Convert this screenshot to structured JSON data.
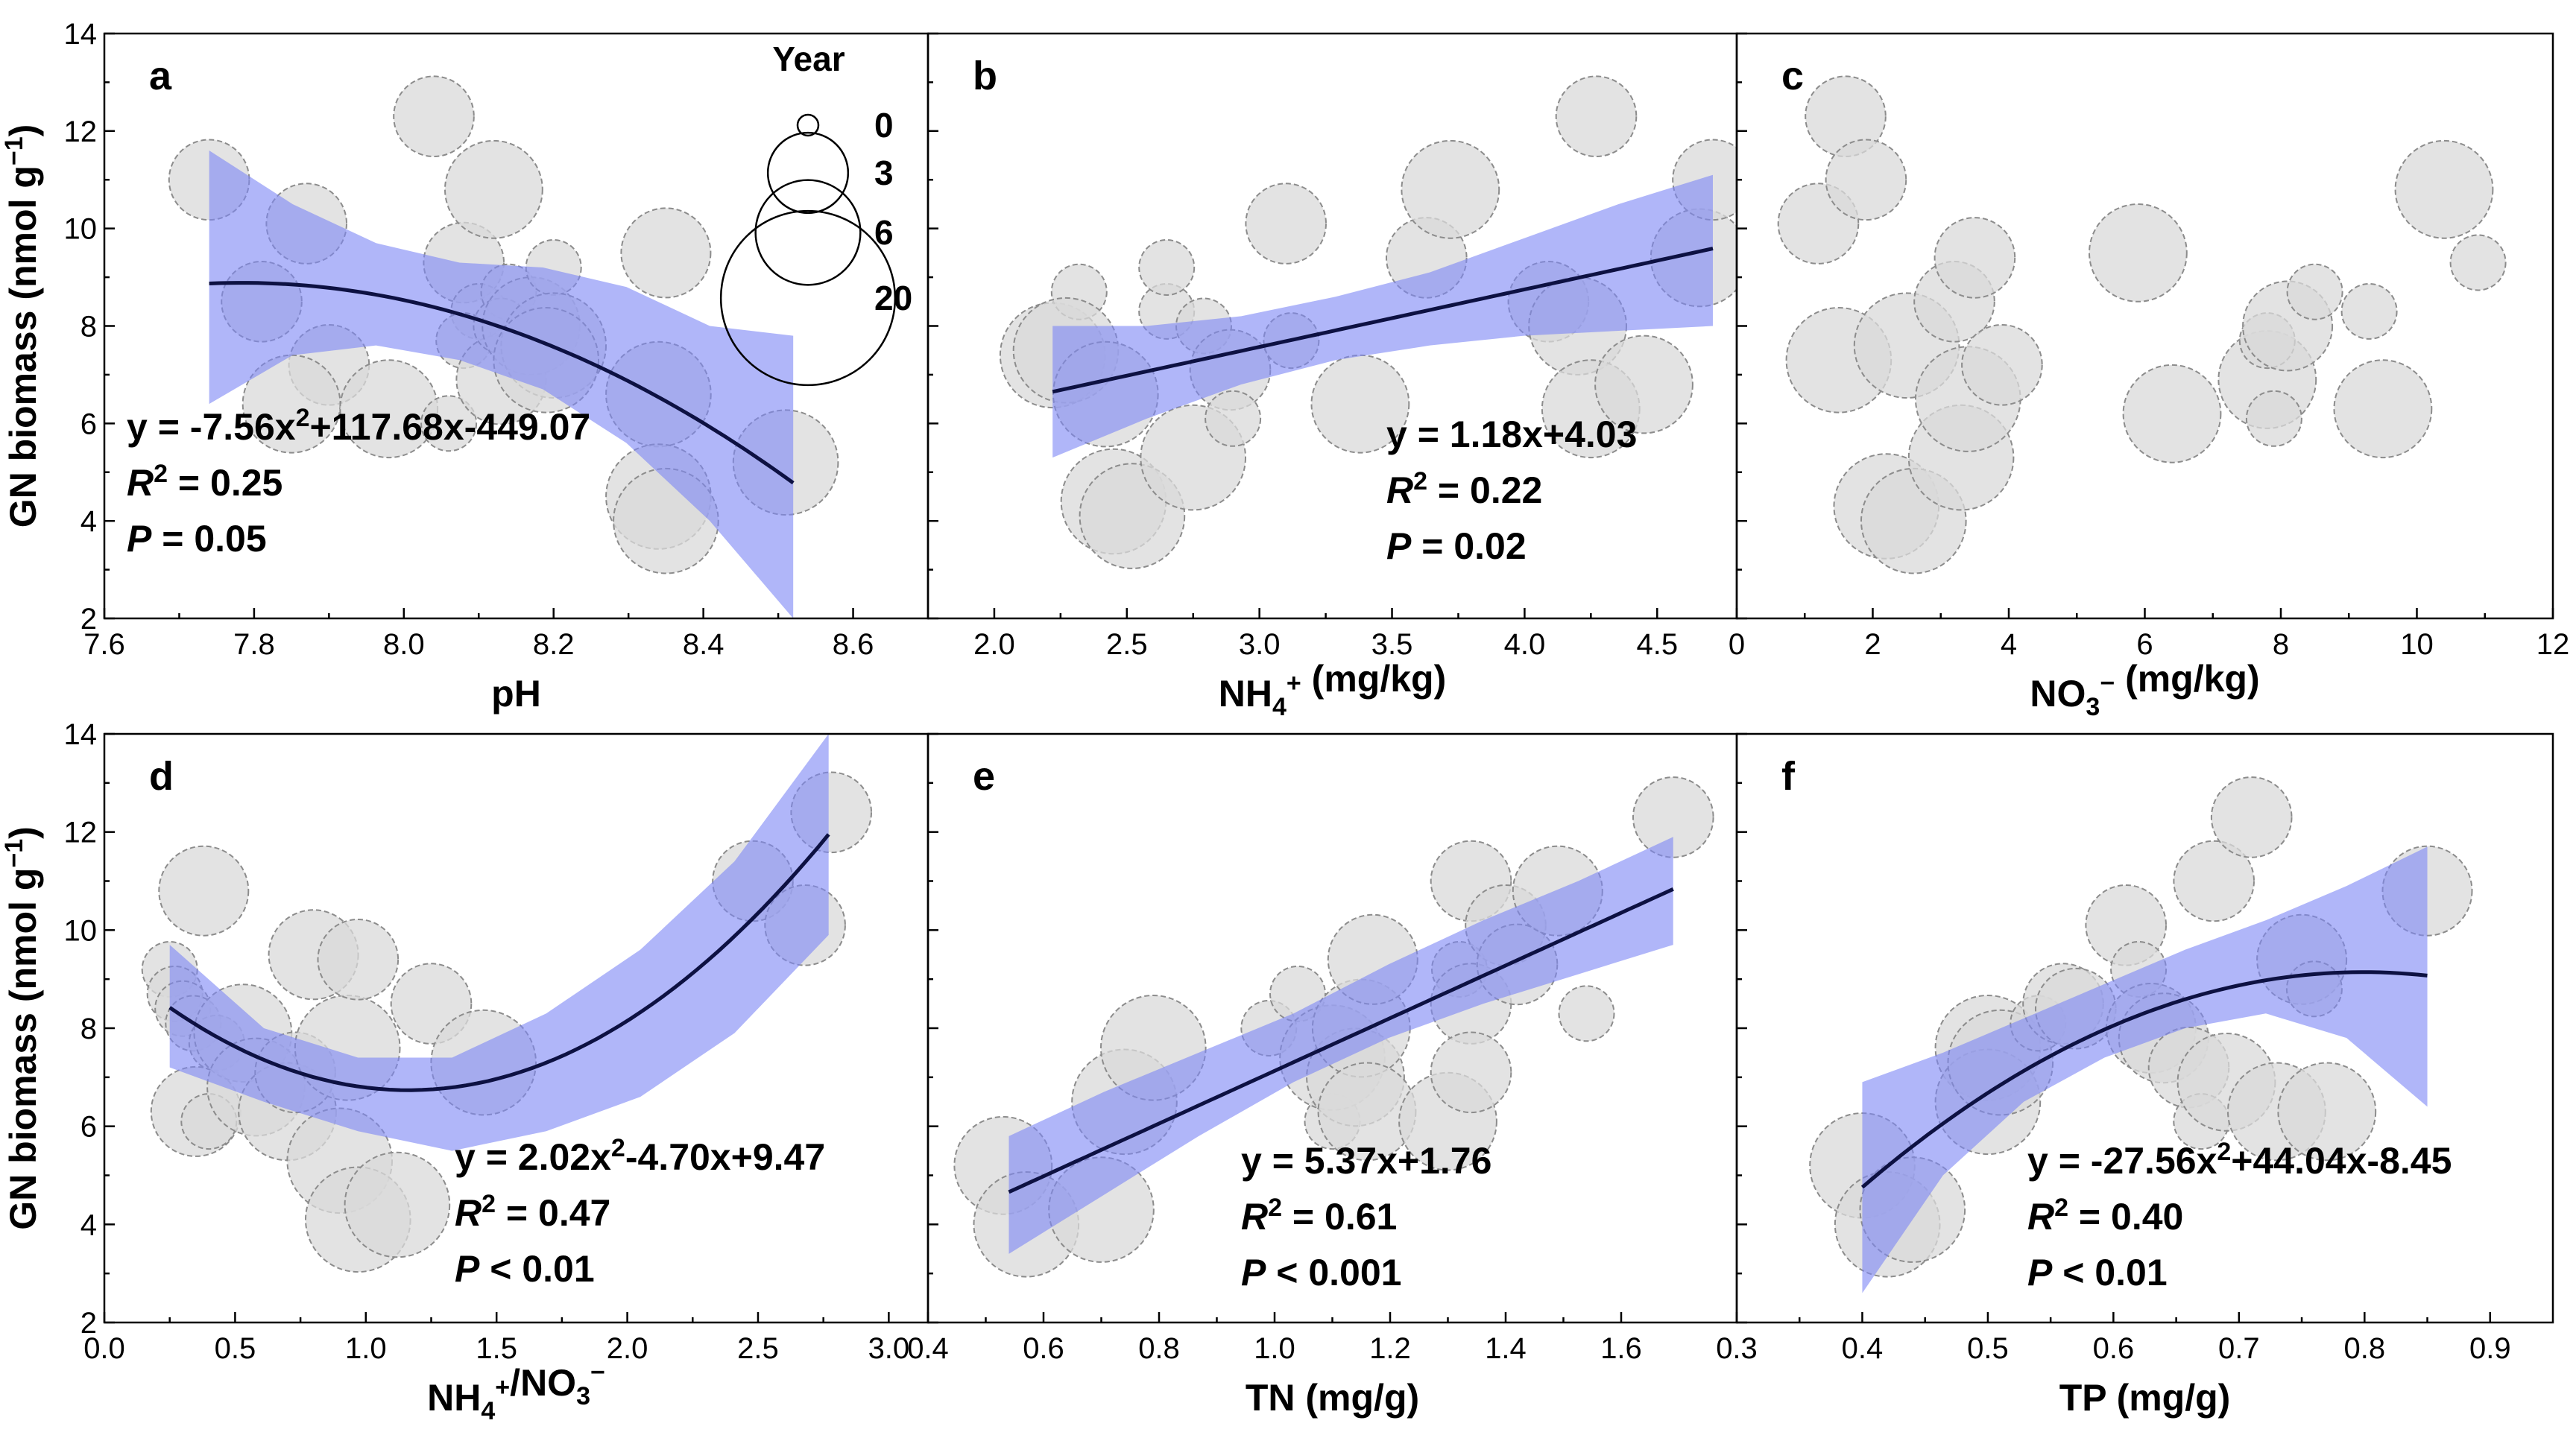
{
  "chart_data": [
    {
      "panel": "a",
      "type": "scatter",
      "xlabel": "pH",
      "ylabel": "GN biomass (nmol g⁻¹)",
      "xlim": [
        7.6,
        8.7
      ],
      "ylim": [
        2,
        14
      ],
      "xticks": [
        "7.6",
        "7.8",
        "8.0",
        "8.2",
        "8.4",
        "8.6"
      ],
      "yticks": [
        "2",
        "4",
        "6",
        "8",
        "10",
        "12",
        "14"
      ],
      "legend": {
        "title": "Year",
        "labels": [
          "0",
          "3",
          "6",
          "20"
        ],
        "sizes": [
          0,
          3,
          6,
          20
        ]
      },
      "fit": {
        "kind": "quadratic",
        "coef": [
          -7.56,
          117.68,
          -449.07
        ],
        "xrange": [
          7.74,
          8.52
        ],
        "ci_low": [
          6.4,
          7.4,
          7.6,
          7.3,
          6.7,
          5.6,
          4.0,
          2.0
        ],
        "ci_high": [
          11.6,
          10.5,
          9.7,
          9.3,
          9.2,
          8.8,
          8.0,
          7.8
        ]
      },
      "equation": "y = -7.56x²+117.68x-449.07",
      "r2": "0.25",
      "p": "P = 0.05",
      "points": [
        [
          7.74,
          11.0,
          3
        ],
        [
          7.81,
          8.5,
          3
        ],
        [
          7.87,
          10.1,
          3
        ],
        [
          7.9,
          7.2,
          3
        ],
        [
          7.85,
          6.4,
          5
        ],
        [
          7.98,
          6.3,
          5
        ],
        [
          8.04,
          12.3,
          3
        ],
        [
          8.08,
          9.3,
          3
        ],
        [
          8.06,
          6.0,
          1
        ],
        [
          8.1,
          8.3,
          1
        ],
        [
          8.08,
          7.7,
          1
        ],
        [
          8.12,
          10.8,
          5
        ],
        [
          8.13,
          6.9,
          4
        ],
        [
          8.14,
          8.7,
          1
        ],
        [
          8.13,
          8.0,
          1
        ],
        [
          8.17,
          8.0,
          5
        ],
        [
          8.2,
          9.2,
          1
        ],
        [
          8.2,
          7.6,
          6
        ],
        [
          8.19,
          7.3,
          6
        ],
        [
          8.35,
          9.5,
          4
        ],
        [
          8.34,
          6.6,
          6
        ],
        [
          8.34,
          4.5,
          6
        ],
        [
          8.35,
          4.0,
          6
        ],
        [
          8.51,
          5.2,
          6
        ]
      ]
    },
    {
      "panel": "b",
      "type": "scatter",
      "xlabel": "NH4+ (mg/kg)",
      "xlim": [
        1.75,
        4.8
      ],
      "ylim": [
        2,
        14
      ],
      "xticks": [
        "2.0",
        "2.5",
        "3.0",
        "3.5",
        "4.0",
        "4.5"
      ],
      "fit": {
        "kind": "linear",
        "coef": [
          1.18,
          4.03
        ],
        "xrange": [
          2.22,
          4.71
        ],
        "ci_low": [
          5.3,
          6.1,
          6.8,
          7.3,
          7.6,
          7.8,
          7.9,
          8.0
        ],
        "ci_high": [
          8.0,
          8.0,
          8.2,
          8.6,
          9.1,
          9.8,
          10.5,
          11.1
        ]
      },
      "equation": "y = 1.18x+4.03",
      "r2": "0.22",
      "p": "P = 0.02",
      "points": [
        [
          2.22,
          7.4,
          6
        ],
        [
          2.32,
          8.7,
          1
        ],
        [
          2.27,
          7.5,
          6
        ],
        [
          2.42,
          6.6,
          6
        ],
        [
          2.45,
          4.4,
          6
        ],
        [
          2.52,
          4.1,
          6
        ],
        [
          2.65,
          8.3,
          1
        ],
        [
          2.65,
          9.2,
          1
        ],
        [
          2.75,
          5.3,
          6
        ],
        [
          2.79,
          8.0,
          1
        ],
        [
          2.89,
          7.1,
          3
        ],
        [
          2.9,
          6.1,
          1
        ],
        [
          3.1,
          10.1,
          3
        ],
        [
          3.12,
          7.7,
          1
        ],
        [
          3.38,
          6.4,
          5
        ],
        [
          3.63,
          9.4,
          3
        ],
        [
          3.72,
          10.8,
          5
        ],
        [
          4.09,
          8.5,
          3
        ],
        [
          4.2,
          8.0,
          5
        ],
        [
          4.25,
          6.3,
          5
        ],
        [
          4.27,
          12.3,
          3
        ],
        [
          4.45,
          6.8,
          5
        ],
        [
          4.66,
          9.4,
          5
        ],
        [
          4.71,
          11.0,
          3
        ]
      ]
    },
    {
      "panel": "c",
      "type": "scatter",
      "xlabel": "NO3− (mg/kg)",
      "xlim": [
        0,
        12
      ],
      "ylim": [
        2,
        14
      ],
      "xticks": [
        "0",
        "2",
        "4",
        "6",
        "8",
        "10",
        "12"
      ],
      "points": [
        [
          1.2,
          10.1,
          3
        ],
        [
          1.6,
          12.3,
          3
        ],
        [
          1.9,
          11.0,
          3
        ],
        [
          1.5,
          7.3,
          6
        ],
        [
          2.2,
          4.3,
          6
        ],
        [
          2.5,
          7.6,
          6
        ],
        [
          2.6,
          4.0,
          6
        ],
        [
          3.2,
          8.5,
          3
        ],
        [
          3.5,
          9.4,
          3
        ],
        [
          3.3,
          5.3,
          6
        ],
        [
          3.4,
          6.5,
          6
        ],
        [
          3.9,
          7.2,
          3
        ],
        [
          5.9,
          9.5,
          5
        ],
        [
          6.4,
          6.2,
          5
        ],
        [
          7.8,
          6.9,
          5
        ],
        [
          7.8,
          7.7,
          1
        ],
        [
          7.9,
          6.1,
          1
        ],
        [
          8.1,
          8.0,
          4
        ],
        [
          8.5,
          8.7,
          1
        ],
        [
          9.3,
          8.3,
          1
        ],
        [
          9.5,
          6.3,
          5
        ],
        [
          10.4,
          10.8,
          5
        ],
        [
          10.9,
          9.3,
          1
        ]
      ]
    },
    {
      "panel": "d",
      "type": "scatter",
      "xlabel": "NH4+/NO3−",
      "ylabel": "GN biomass (nmol g⁻¹)",
      "xlim": [
        0,
        3.15
      ],
      "ylim": [
        2,
        14
      ],
      "xticks": [
        "0.0",
        "0.5",
        "1.0",
        "1.5",
        "2.0",
        "2.5",
        "3.0"
      ],
      "yticks": [
        "2",
        "4",
        "6",
        "8",
        "10",
        "12",
        "14"
      ],
      "fit": {
        "kind": "quadratic",
        "coef": [
          2.02,
          -4.7,
          9.47
        ],
        "xrange": [
          0.25,
          2.77
        ],
        "ci_low": [
          7.2,
          6.5,
          5.9,
          5.5,
          5.9,
          6.6,
          7.9,
          9.9
        ],
        "ci_high": [
          9.7,
          8.0,
          7.4,
          7.4,
          8.3,
          9.6,
          11.4,
          14.0
        ]
      },
      "equation": "y = 2.02x²-4.70x+9.47",
      "r2": "0.47",
      "p": "P < 0.01",
      "points": [
        [
          0.25,
          9.2,
          1
        ],
        [
          0.27,
          8.7,
          1
        ],
        [
          0.3,
          8.4,
          1
        ],
        [
          0.34,
          8.1,
          1
        ],
        [
          0.38,
          10.8,
          4
        ],
        [
          0.35,
          6.3,
          4
        ],
        [
          0.4,
          6.1,
          1
        ],
        [
          0.43,
          7.7,
          1
        ],
        [
          0.53,
          7.9,
          5
        ],
        [
          0.58,
          6.8,
          5
        ],
        [
          0.7,
          6.3,
          5
        ],
        [
          0.73,
          7.1,
          3
        ],
        [
          0.8,
          9.5,
          4
        ],
        [
          0.93,
          7.6,
          6
        ],
        [
          0.97,
          9.4,
          3
        ],
        [
          0.9,
          5.3,
          6
        ],
        [
          0.97,
          4.1,
          6
        ],
        [
          1.12,
          4.4,
          6
        ],
        [
          1.25,
          8.5,
          3
        ],
        [
          1.45,
          7.3,
          6
        ],
        [
          2.48,
          11.0,
          3
        ],
        [
          2.68,
          10.1,
          3
        ],
        [
          2.78,
          12.4,
          3
        ]
      ]
    },
    {
      "panel": "e",
      "type": "scatter",
      "xlabel": "TN (mg/g)",
      "xlim": [
        0.4,
        1.8
      ],
      "ylim": [
        2,
        14
      ],
      "xticks": [
        "0.4",
        "0.6",
        "0.8",
        "1.0",
        "1.2",
        "1.4",
        "1.6"
      ],
      "fit": {
        "kind": "linear",
        "coef": [
          5.37,
          1.76
        ],
        "xrange": [
          0.54,
          1.69
        ],
        "ci_low": [
          3.4,
          4.6,
          5.8,
          6.9,
          7.8,
          8.5,
          9.1,
          9.7
        ],
        "ci_high": [
          5.8,
          6.7,
          7.5,
          8.3,
          9.3,
          10.2,
          11.0,
          11.9
        ]
      },
      "equation": "y = 5.37x+1.76",
      "r2": "0.61",
      "p": "P < 0.001",
      "points": [
        [
          0.53,
          5.2,
          5
        ],
        [
          0.57,
          4.0,
          6
        ],
        [
          0.7,
          4.3,
          6
        ],
        [
          0.74,
          6.5,
          6
        ],
        [
          0.79,
          7.6,
          6
        ],
        [
          0.99,
          8.0,
          1
        ],
        [
          1.04,
          8.7,
          1
        ],
        [
          1.1,
          6.1,
          1
        ],
        [
          1.1,
          7.4,
          6
        ],
        [
          1.14,
          7.0,
          5
        ],
        [
          1.15,
          8.0,
          5
        ],
        [
          1.17,
          9.4,
          4
        ],
        [
          1.16,
          6.3,
          5
        ],
        [
          1.3,
          6.1,
          5
        ],
        [
          1.32,
          9.2,
          1
        ],
        [
          1.34,
          8.5,
          3
        ],
        [
          1.34,
          7.1,
          3
        ],
        [
          1.34,
          11.0,
          3
        ],
        [
          1.4,
          10.1,
          3
        ],
        [
          1.42,
          9.3,
          3
        ],
        [
          1.49,
          10.8,
          4
        ],
        [
          1.54,
          8.3,
          1
        ],
        [
          1.69,
          12.3,
          3
        ]
      ]
    },
    {
      "panel": "f",
      "type": "scatter",
      "xlabel": "TP (mg/g)",
      "xlim": [
        0.3,
        0.95
      ],
      "ylim": [
        2,
        14
      ],
      "xticks": [
        "0.3",
        "0.4",
        "0.5",
        "0.6",
        "0.7",
        "0.8",
        "0.9"
      ],
      "fit": {
        "kind": "quadratic",
        "coef": [
          -27.56,
          44.04,
          -8.45
        ],
        "xrange": [
          0.4,
          0.85
        ],
        "ci_low": [
          2.6,
          5.0,
          6.5,
          7.4,
          8.0,
          8.3,
          7.8,
          6.4
        ],
        "ci_high": [
          6.9,
          7.5,
          8.2,
          8.9,
          9.6,
          10.2,
          10.9,
          11.7
        ]
      },
      "equation": "y = -27.56x²+44.04x-8.45",
      "r2": "0.40",
      "p": "P < 0.01",
      "points": [
        [
          0.4,
          5.2,
          6
        ],
        [
          0.42,
          4.0,
          6
        ],
        [
          0.44,
          4.3,
          6
        ],
        [
          0.5,
          7.6,
          6
        ],
        [
          0.5,
          6.5,
          6
        ],
        [
          0.51,
          7.3,
          6
        ],
        [
          0.54,
          8.1,
          1
        ],
        [
          0.56,
          8.5,
          3
        ],
        [
          0.57,
          8.4,
          3
        ],
        [
          0.61,
          10.1,
          3
        ],
        [
          0.62,
          9.2,
          1
        ],
        [
          0.63,
          8.0,
          4
        ],
        [
          0.64,
          7.8,
          4
        ],
        [
          0.66,
          7.2,
          3
        ],
        [
          0.67,
          6.1,
          1
        ],
        [
          0.68,
          11.0,
          3
        ],
        [
          0.69,
          6.9,
          5
        ],
        [
          0.71,
          12.3,
          3
        ],
        [
          0.73,
          6.3,
          5
        ],
        [
          0.75,
          9.4,
          4
        ],
        [
          0.76,
          8.8,
          1
        ],
        [
          0.77,
          6.3,
          5
        ],
        [
          0.85,
          10.8,
          4
        ]
      ]
    }
  ]
}
